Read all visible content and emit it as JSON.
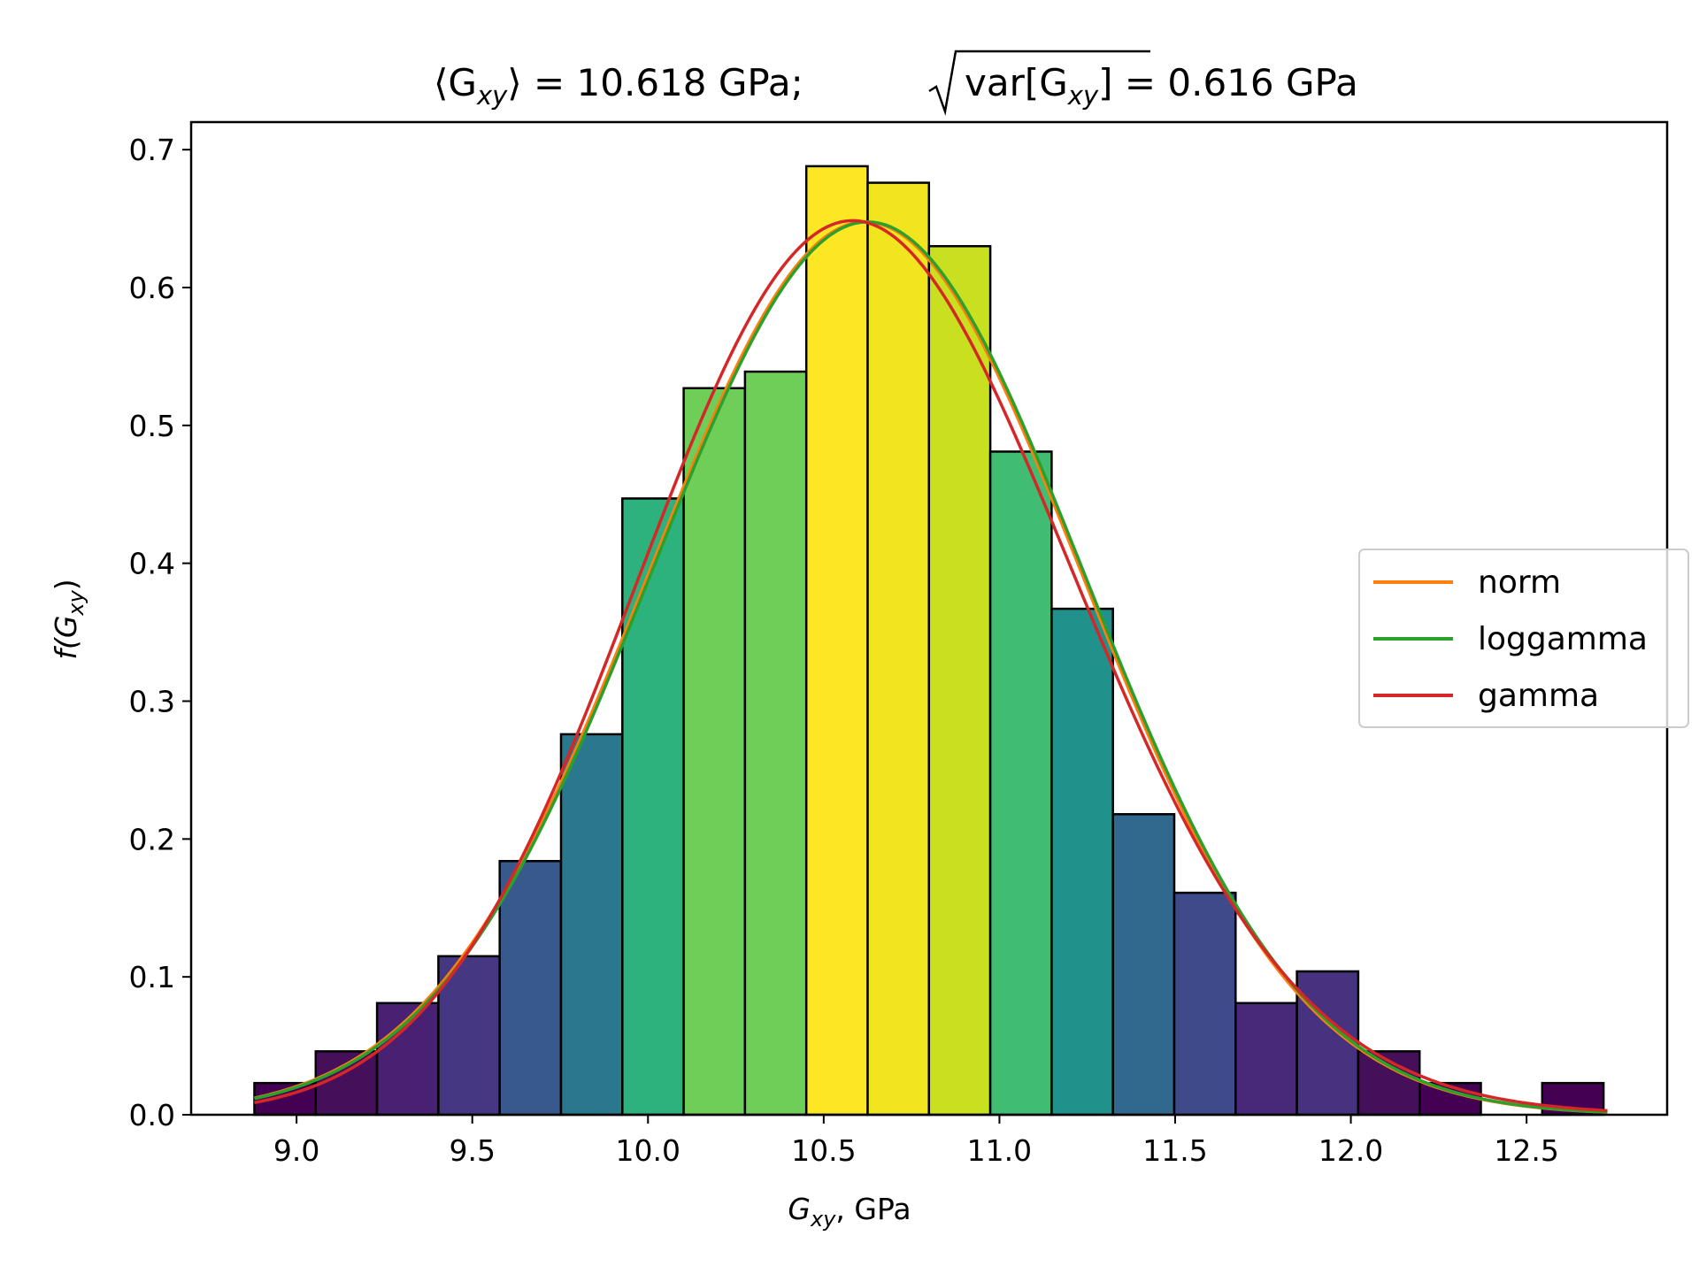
{
  "chart_data": {
    "type": "bar",
    "title": {
      "mean_label": "⟨G",
      "mean_sub": "xy",
      "mean_value": "⟩ = 10.618 GPa;",
      "std_label": "var[G",
      "std_sub": "xy",
      "std_value": "] = 0.616 GPa"
    },
    "xlabel": {
      "symbol": "G",
      "sub": "xy",
      "rest": ", GPa"
    },
    "ylabel": {
      "symbol": "f(G",
      "sub": "xy",
      "rest": ")"
    },
    "xlim": [
      8.7,
      12.9
    ],
    "ylim": [
      0.0,
      0.72
    ],
    "x_ticks": [
      9.0,
      9.5,
      10.0,
      10.5,
      11.0,
      11.5,
      12.0,
      12.5
    ],
    "x_tick_labels": [
      "9.0",
      "9.5",
      "10.0",
      "10.5",
      "11.0",
      "11.5",
      "12.0",
      "12.5"
    ],
    "y_ticks": [
      0.0,
      0.1,
      0.2,
      0.3,
      0.4,
      0.5,
      0.6,
      0.7
    ],
    "y_tick_labels": [
      "0.0",
      "0.1",
      "0.2",
      "0.3",
      "0.4",
      "0.5",
      "0.6",
      "0.7"
    ],
    "bin_start": 8.88,
    "bin_width": 0.1745,
    "bins": [
      {
        "value": 0.023,
        "color": "#440154"
      },
      {
        "value": 0.046,
        "color": "#450f59"
      },
      {
        "value": 0.081,
        "color": "#482173"
      },
      {
        "value": 0.115,
        "color": "#453781"
      },
      {
        "value": 0.184,
        "color": "#38598c"
      },
      {
        "value": 0.276,
        "color": "#2a788e"
      },
      {
        "value": 0.447,
        "color": "#2db27d"
      },
      {
        "value": 0.527,
        "color": "#6ece58"
      },
      {
        "value": 0.539,
        "color": "#6ece58"
      },
      {
        "value": 0.688,
        "color": "#fde725"
      },
      {
        "value": 0.676,
        "color": "#f0e51f"
      },
      {
        "value": 0.63,
        "color": "#c8e020"
      },
      {
        "value": 0.481,
        "color": "#40bd72"
      },
      {
        "value": 0.367,
        "color": "#21918c"
      },
      {
        "value": 0.218,
        "color": "#31688e"
      },
      {
        "value": 0.161,
        "color": "#3e4a89"
      },
      {
        "value": 0.081,
        "color": "#482878"
      },
      {
        "value": 0.104,
        "color": "#46327e"
      },
      {
        "value": 0.046,
        "color": "#450f59"
      },
      {
        "value": 0.023,
        "color": "#440154"
      },
      {
        "value": 0.0,
        "color": "#440154"
      },
      {
        "value": 0.023,
        "color": "#440154"
      }
    ],
    "series": [
      {
        "name": "norm",
        "color": "#ff7f0e",
        "dist": "norm",
        "mean": 10.618,
        "std": 0.616
      },
      {
        "name": "loggamma",
        "color": "#2ca02c",
        "dist": "norm",
        "mean": 10.625,
        "std": 0.616
      },
      {
        "name": "gamma",
        "color": "#d62728",
        "dist": "gamma",
        "mean": 10.618,
        "std": 0.616
      }
    ],
    "curve_x_range": [
      8.88,
      12.73
    ],
    "legend_position": "center-right"
  }
}
